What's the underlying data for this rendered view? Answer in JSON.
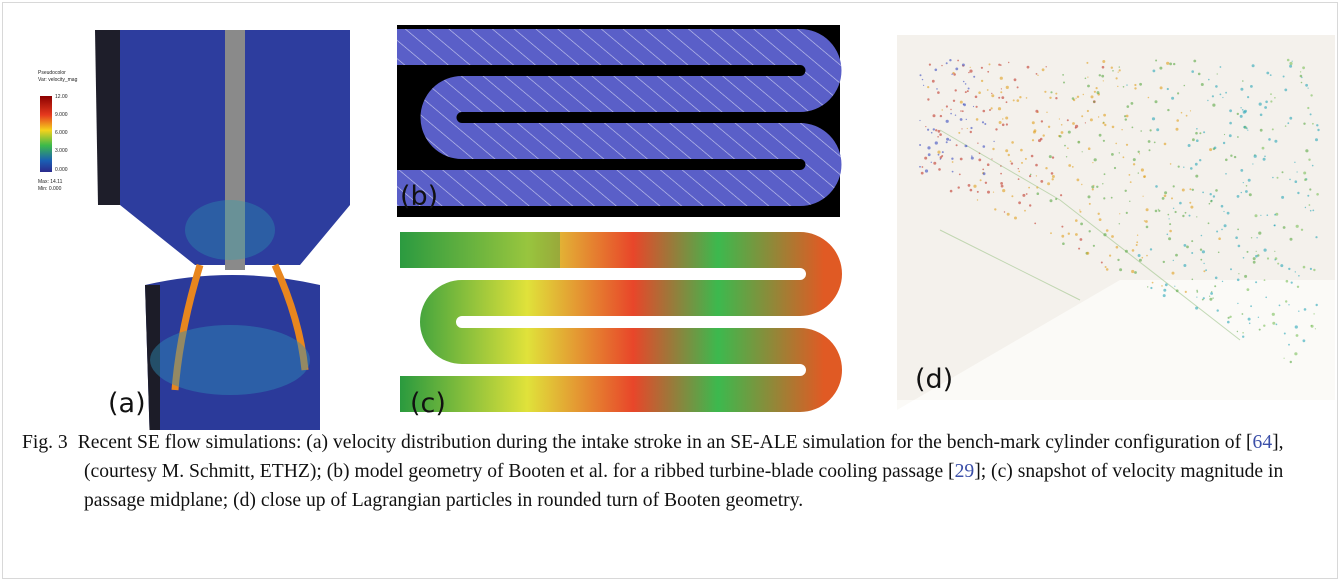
{
  "figure": {
    "panels": [
      {
        "label": "(a)"
      },
      {
        "label": "(b)"
      },
      {
        "label": "(c)"
      },
      {
        "label": "(d)"
      }
    ],
    "colorbar": {
      "title": "Pseudocolor",
      "variable": "Var: velocity_mag",
      "ticks": [
        "12.00",
        "9.000",
        "6.000",
        "3.000",
        "0.000"
      ],
      "max": "Max: 14.11",
      "min": "Min: 0.000"
    }
  },
  "caption": {
    "label": "Fig. 3",
    "parts": [
      "Recent SE flow simulations: (a) velocity distribution during the intake stroke in an SE-ALE simulation for the bench-mark cylinder configuration of [",
      "64",
      "], (courtesy M. Schmitt, ETHZ); (b) model geometry of Booten et al.  for a ribbed turbine-blade cooling passage [",
      "29",
      "]; (c) snapshot of velocity magnitude in passage midplane; (d) close up of Lagrangian particles in rounded turn of Booten geometry."
    ]
  }
}
